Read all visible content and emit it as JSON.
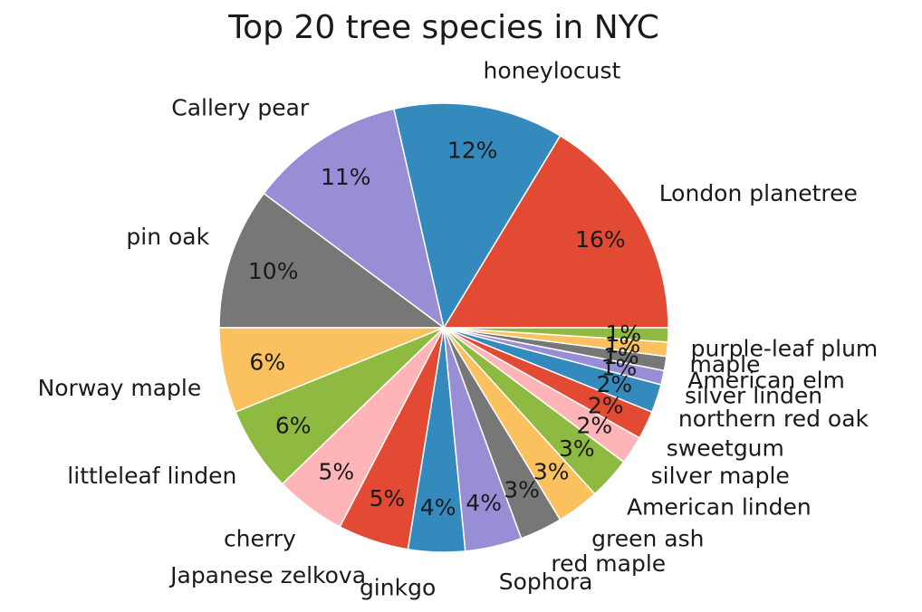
{
  "chart_data": {
    "type": "pie",
    "title": "Top 20 tree species in NYC",
    "start_angle_deg": 0,
    "direction": "counterclockwise",
    "slices": [
      {
        "label": "London planetree",
        "value": 16,
        "pct_label": "16%",
        "color": "#E24A33"
      },
      {
        "label": "honeylocust",
        "value": 12,
        "pct_label": "12%",
        "color": "#348ABD"
      },
      {
        "label": "Callery pear",
        "value": 11,
        "pct_label": "11%",
        "color": "#988ED5"
      },
      {
        "label": "pin oak",
        "value": 10,
        "pct_label": "10%",
        "color": "#777777"
      },
      {
        "label": "Norway maple",
        "value": 6,
        "pct_label": "6%",
        "color": "#FBC15E"
      },
      {
        "label": "littleleaf linden",
        "value": 6,
        "pct_label": "6%",
        "color": "#8EBA42"
      },
      {
        "label": "cherry",
        "value": 5,
        "pct_label": "5%",
        "color": "#FFB5B8"
      },
      {
        "label": "Japanese zelkova",
        "value": 5,
        "pct_label": "5%",
        "color": "#E24A33"
      },
      {
        "label": "ginkgo",
        "value": 4,
        "pct_label": "4%",
        "color": "#348ABD"
      },
      {
        "label": "Sophora",
        "value": 4,
        "pct_label": "4%",
        "color": "#988ED5"
      },
      {
        "label": "red maple",
        "value": 3,
        "pct_label": "3%",
        "color": "#777777"
      },
      {
        "label": "green ash",
        "value": 3,
        "pct_label": "3%",
        "color": "#FBC15E"
      },
      {
        "label": "American linden",
        "value": 3,
        "pct_label": "3%",
        "color": "#8EBA42"
      },
      {
        "label": "silver maple",
        "value": 2,
        "pct_label": "2%",
        "color": "#FFB5B8"
      },
      {
        "label": "sweetgum",
        "value": 2,
        "pct_label": "2%",
        "color": "#E24A33"
      },
      {
        "label": "northern red oak",
        "value": 2,
        "pct_label": "2%",
        "color": "#348ABD"
      },
      {
        "label": "silver linden",
        "value": 1,
        "pct_label": "1%",
        "color": "#988ED5"
      },
      {
        "label": "American elm",
        "value": 1,
        "pct_label": "1%",
        "color": "#777777"
      },
      {
        "label": "maple",
        "value": 1,
        "pct_label": "1%",
        "color": "#FBC15E"
      },
      {
        "label": "purple-leaf plum",
        "value": 1,
        "pct_label": "1%",
        "color": "#8EBA42"
      }
    ]
  }
}
